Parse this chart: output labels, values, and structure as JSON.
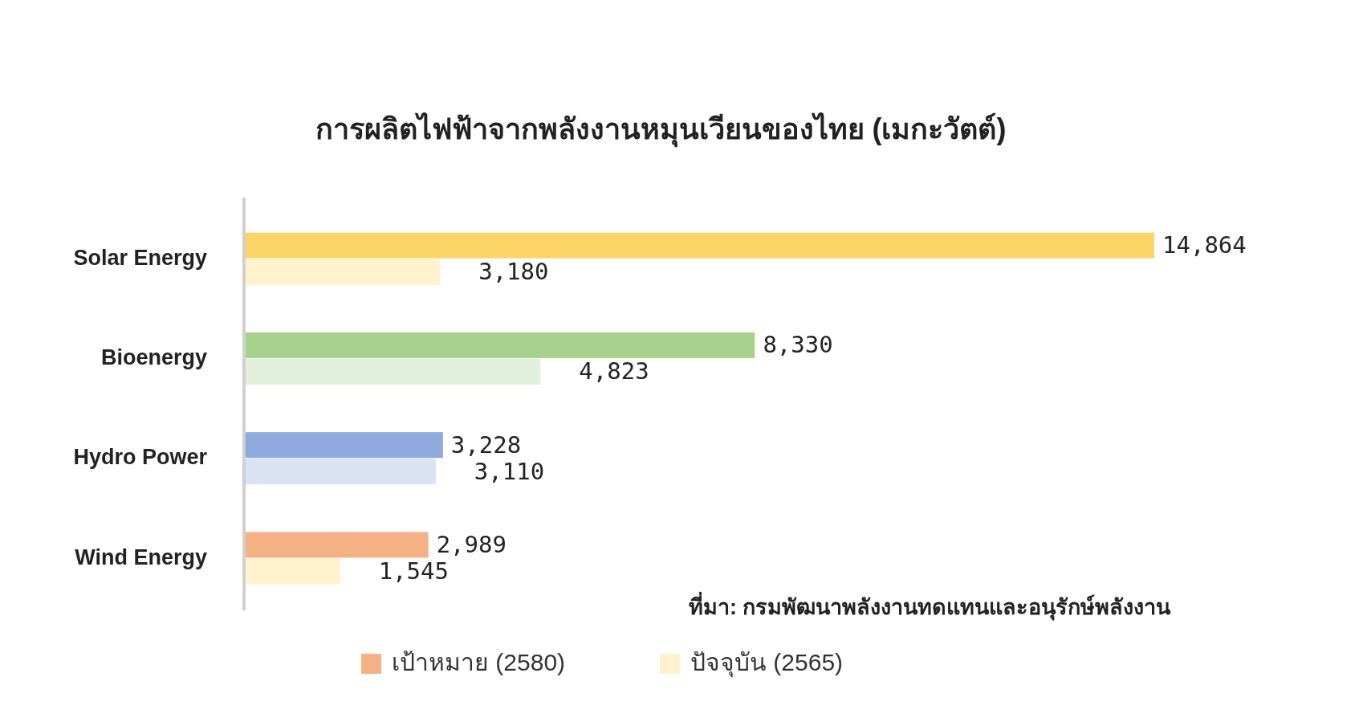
{
  "chart_data": {
    "type": "bar",
    "orientation": "horizontal",
    "title": "การผลิตไฟฟ้าจากพลังงานหมุนเวียนของไทย (เมกะวัตต์)",
    "categories": [
      "Solar Energy",
      "Bioenergy",
      "Hydro Power",
      "Wind Energy"
    ],
    "series": [
      {
        "name": "เป้าหมาย (2580)",
        "color": "#f4b183",
        "colors": [
          "#fdd466",
          "#a9d18e",
          "#8faadc",
          "#f4b183"
        ],
        "values": [
          14864,
          8330,
          3228,
          2989
        ],
        "value_labels": [
          "14,864",
          "8,330",
          "3,228",
          "2,989"
        ]
      },
      {
        "name": "ปัจจุบัน (2565)",
        "color": "#fff2cc",
        "colors": [
          "#fff2cc",
          "#e2efda",
          "#dae3f3",
          "#fff2cc"
        ],
        "values": [
          3180,
          4823,
          3110,
          1545
        ],
        "value_labels": [
          "3,180",
          "4,823",
          "3,110",
          "1,545"
        ]
      }
    ],
    "annotations": [
      "ที่มา: กรมพัฒนาพลังงานทดแทนและอนุรักษ์พลังงาน"
    ],
    "legend": "bottom"
  }
}
